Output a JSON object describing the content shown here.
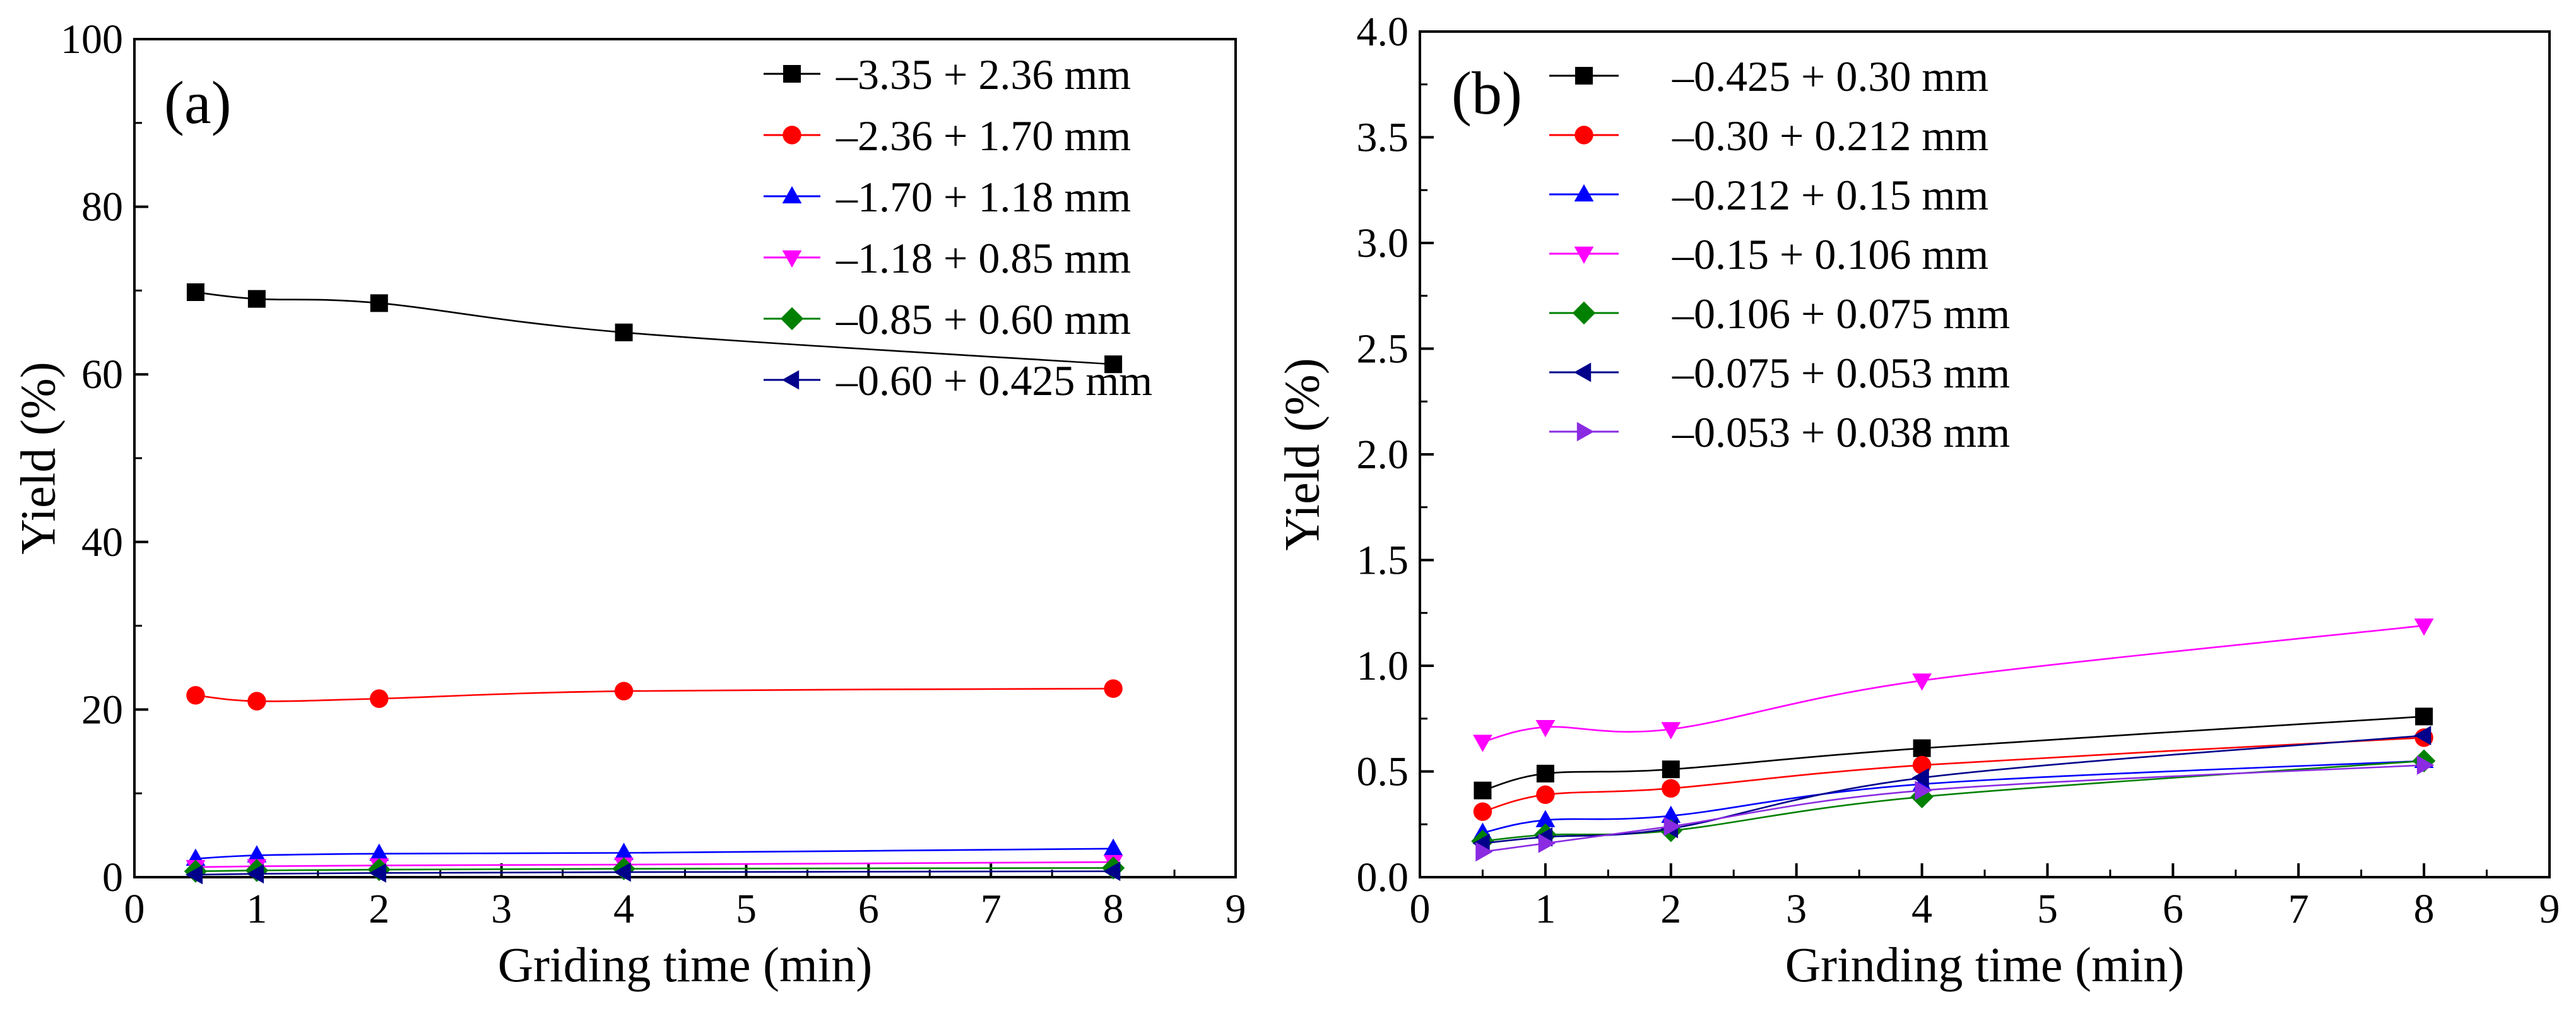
{
  "chart_data": [
    {
      "type": "line",
      "panel_label": "(a)",
      "xlabel": "Griding time (min)",
      "ylabel": "Yield (%)",
      "xlim": [
        0,
        9
      ],
      "ylim": [
        0,
        100
      ],
      "xticks": [
        0,
        1,
        2,
        3,
        4,
        5,
        6,
        7,
        8,
        9
      ],
      "yticks": [
        0,
        20,
        40,
        60,
        80,
        100
      ],
      "x": [
        0.5,
        1,
        2,
        4,
        8
      ],
      "legend_position": "top-right",
      "series": [
        {
          "name": "–3.35 + 2.36 mm",
          "color": "#000000",
          "marker": "square",
          "values": [
            69.8,
            69.0,
            68.5,
            65.0,
            61.2
          ]
        },
        {
          "name": "–2.36 + 1.70 mm",
          "color": "#ff0000",
          "marker": "circle",
          "values": [
            21.7,
            21.0,
            21.3,
            22.2,
            22.5
          ]
        },
        {
          "name": "–1.70 + 1.18 mm",
          "color": "#0000ff",
          "marker": "triangle-up",
          "values": [
            2.2,
            2.6,
            2.8,
            2.9,
            3.4
          ]
        },
        {
          "name": "–1.18 + 0.85 mm",
          "color": "#ff00ff",
          "marker": "triangle-down",
          "values": [
            1.2,
            1.3,
            1.4,
            1.5,
            1.8
          ]
        },
        {
          "name": "–0.85 + 0.60 mm",
          "color": "#008000",
          "marker": "diamond",
          "values": [
            0.7,
            0.8,
            0.9,
            1.0,
            1.1
          ]
        },
        {
          "name": "–0.60 + 0.425 mm",
          "color": "#00008b",
          "marker": "triangle-left",
          "values": [
            0.3,
            0.4,
            0.5,
            0.6,
            0.7
          ]
        }
      ]
    },
    {
      "type": "line",
      "panel_label": "(b)",
      "xlabel": "Grinding time (min)",
      "ylabel": "Yield (%)",
      "xlim": [
        0,
        9
      ],
      "ylim": [
        0,
        4.0
      ],
      "xticks": [
        0,
        1,
        2,
        3,
        4,
        5,
        6,
        7,
        8,
        9
      ],
      "yticks": [
        "0.0",
        "0.5",
        "1.0",
        "1.5",
        "2.0",
        "2.5",
        "3.0",
        "3.5",
        "4.0"
      ],
      "x": [
        0.5,
        1,
        2,
        4,
        8
      ],
      "legend_position": "top-left",
      "series": [
        {
          "name": "–0.425 + 0.30 mm",
          "color": "#000000",
          "marker": "square",
          "values": [
            0.41,
            0.49,
            0.51,
            0.61,
            0.76
          ]
        },
        {
          "name": "–0.30 + 0.212 mm",
          "color": "#ff0000",
          "marker": "circle",
          "values": [
            0.31,
            0.39,
            0.42,
            0.53,
            0.66
          ]
        },
        {
          "name": "–0.212 + 0.15 mm",
          "color": "#0000ff",
          "marker": "triangle-up",
          "values": [
            0.21,
            0.27,
            0.29,
            0.44,
            0.55
          ]
        },
        {
          "name": "–0.15 + 0.106 mm",
          "color": "#ff00ff",
          "marker": "triangle-down",
          "values": [
            0.64,
            0.71,
            0.7,
            0.93,
            1.19
          ]
        },
        {
          "name": "–0.106 + 0.075 mm",
          "color": "#008000",
          "marker": "diamond",
          "values": [
            0.17,
            0.2,
            0.22,
            0.38,
            0.55
          ]
        },
        {
          "name": "–0.075 + 0.053 mm",
          "color": "#00008b",
          "marker": "triangle-left",
          "values": [
            0.16,
            0.19,
            0.23,
            0.47,
            0.67
          ]
        },
        {
          "name": "–0.053 + 0.038 mm",
          "color": "#8a2be2",
          "marker": "triangle-right",
          "values": [
            0.12,
            0.16,
            0.24,
            0.41,
            0.53
          ]
        }
      ]
    }
  ]
}
